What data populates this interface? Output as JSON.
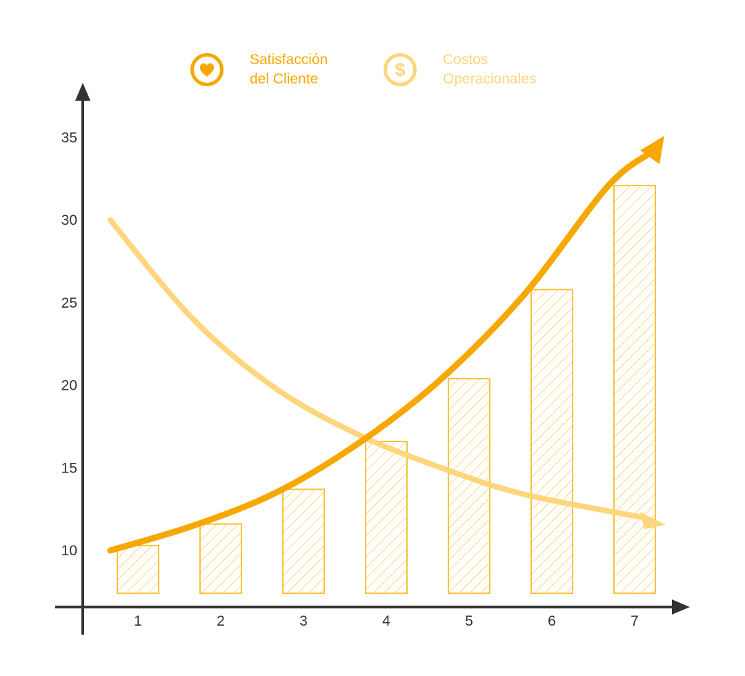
{
  "legend": {
    "series1": {
      "label": "Satisfacción\ndel Cliente",
      "icon": "heart-icon",
      "color": "#f7a800"
    },
    "series2": {
      "label": "Costos\nOperacionales",
      "icon": "dollar-icon",
      "color": "#ffd57e"
    }
  },
  "colors": {
    "axis": "#333333",
    "bar_stroke": "#f7c23a",
    "bar_hatch": "#f7c23a",
    "accent": "#f7a800",
    "light_accent": "#ffd57e"
  },
  "chart_data": {
    "type": "bar",
    "categories": [
      "1",
      "2",
      "3",
      "4",
      "5",
      "6",
      "7"
    ],
    "values": [
      10.3,
      11.6,
      13.7,
      16.6,
      20.4,
      25.8,
      32.1
    ],
    "series": [
      {
        "name": "Satisfacción del Cliente",
        "type": "line",
        "x": [
          1,
          2,
          3,
          4,
          5,
          6,
          7
        ],
        "values": [
          10.0,
          11.5,
          13.5,
          16.5,
          20.4,
          25.5,
          32.0
        ]
      },
      {
        "name": "Costos Operacionales",
        "type": "line",
        "x": [
          1,
          2,
          3,
          4,
          5,
          6,
          7
        ],
        "values": [
          30.0,
          24.0,
          19.8,
          17.0,
          15.0,
          13.4,
          12.0
        ]
      }
    ],
    "yticks": [
      "10",
      "15",
      "20",
      "25",
      "30",
      "35"
    ],
    "ylim": [
      7,
      38
    ],
    "xlabel": "",
    "ylabel": "",
    "title": ""
  }
}
